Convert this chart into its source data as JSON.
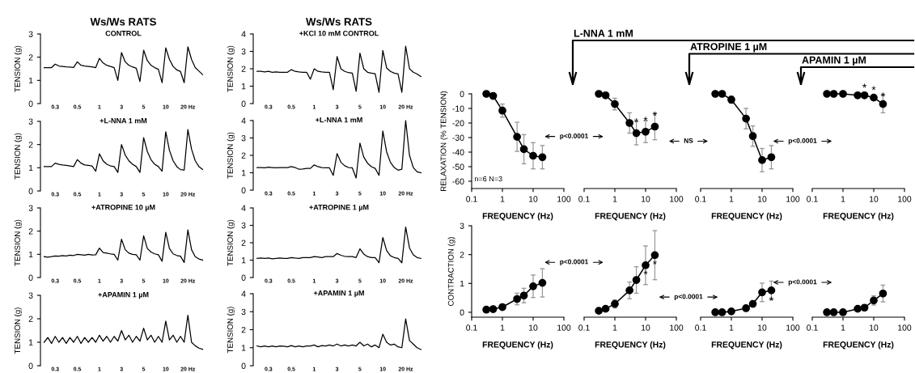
{
  "chart_data": [
    {
      "type": "line",
      "title": "Ws/Ws RATS",
      "subtitle": "CONTROL",
      "ylabel": "TENSION (g)",
      "color": "#000000",
      "ylim": [
        0,
        3
      ],
      "yticks": [
        0,
        1,
        2,
        3
      ],
      "categories": [
        null,
        null,
        null,
        "0.3",
        null,
        null,
        null,
        null,
        null,
        "0.5",
        null,
        null,
        null,
        null,
        null,
        "1",
        null,
        null,
        null,
        null,
        null,
        "3",
        null,
        null,
        null,
        null,
        null,
        "5",
        null,
        null,
        null,
        null,
        null,
        "10",
        null,
        null,
        null,
        null,
        null,
        "20 Hz",
        null,
        null,
        null,
        null
      ],
      "values": [
        1.55,
        1.55,
        1.55,
        1.7,
        1.62,
        1.6,
        1.58,
        1.57,
        1.56,
        1.8,
        1.65,
        1.62,
        1.6,
        1.58,
        1.55,
        1.95,
        1.75,
        1.65,
        1.6,
        1.55,
        1.0,
        2.2,
        1.8,
        1.65,
        1.58,
        1.52,
        0.95,
        2.3,
        1.85,
        1.65,
        1.55,
        1.48,
        0.9,
        2.4,
        1.9,
        1.6,
        1.45,
        1.38,
        0.9,
        2.45,
        1.9,
        1.55,
        1.4,
        1.25
      ]
    },
    {
      "type": "line",
      "subtitle": "+L-NNA 1 mM",
      "ylabel": "TENSION (g)",
      "color": "#000000",
      "ylim": [
        0,
        3
      ],
      "yticks": [
        0,
        1,
        2,
        3
      ],
      "categories": [
        null,
        null,
        null,
        "0.3",
        null,
        null,
        null,
        null,
        null,
        "0.5",
        null,
        null,
        null,
        null,
        null,
        "1",
        null,
        null,
        null,
        null,
        null,
        "3",
        null,
        null,
        null,
        null,
        null,
        "5",
        null,
        null,
        null,
        null,
        null,
        "10",
        null,
        null,
        null,
        null,
        null,
        "20 Hz",
        null,
        null,
        null,
        null
      ],
      "values": [
        1.05,
        1.05,
        1.05,
        1.2,
        1.15,
        1.12,
        1.1,
        1.08,
        1.05,
        1.35,
        1.2,
        1.12,
        1.1,
        1.08,
        0.85,
        1.6,
        1.3,
        1.15,
        1.08,
        1.05,
        0.8,
        2.0,
        1.55,
        1.3,
        1.15,
        1.05,
        0.8,
        2.3,
        1.7,
        1.35,
        1.15,
        1.05,
        0.85,
        2.55,
        1.75,
        1.3,
        1.05,
        0.92,
        0.9,
        2.65,
        1.8,
        1.3,
        1.05,
        0.93
      ]
    },
    {
      "type": "line",
      "subtitle": "+ATROPINE 10 µM",
      "ylabel": "TENSION (g)",
      "color": "#000000",
      "ylim": [
        0,
        3
      ],
      "yticks": [
        0,
        1,
        2,
        3
      ],
      "categories": [
        null,
        null,
        null,
        "0.3",
        null,
        null,
        null,
        null,
        null,
        "0.5",
        null,
        null,
        null,
        null,
        null,
        "1",
        null,
        null,
        null,
        null,
        null,
        "3",
        null,
        null,
        null,
        null,
        null,
        "5",
        null,
        null,
        null,
        null,
        null,
        "10",
        null,
        null,
        null,
        null,
        null,
        "20 Hz",
        null,
        null,
        null,
        null
      ],
      "values": [
        0.9,
        0.88,
        0.9,
        0.93,
        0.92,
        0.95,
        0.93,
        0.96,
        0.95,
        1.0,
        0.98,
        0.96,
        1.0,
        0.97,
        0.98,
        1.27,
        1.08,
        1.05,
        1.02,
        1.0,
        0.75,
        1.65,
        1.2,
        1.05,
        1.0,
        0.98,
        0.75,
        1.8,
        1.25,
        1.1,
        1.02,
        0.98,
        0.7,
        1.95,
        1.25,
        1.02,
        0.95,
        0.92,
        0.65,
        2.05,
        1.2,
        0.9,
        0.8,
        0.75
      ]
    },
    {
      "type": "line",
      "subtitle": "+APAMIN 1 µM",
      "ylabel": "TENSION (g)",
      "color": "#000000",
      "ylim": [
        0,
        3
      ],
      "yticks": [
        0,
        1,
        2,
        3
      ],
      "categories": [
        null,
        null,
        null,
        "0.3",
        null,
        null,
        null,
        null,
        null,
        "0.5",
        null,
        null,
        null,
        null,
        null,
        "1",
        null,
        null,
        null,
        null,
        null,
        "3",
        null,
        null,
        null,
        null,
        null,
        "5",
        null,
        null,
        null,
        null,
        null,
        "10",
        null,
        null,
        null,
        null,
        null,
        "20 Hz",
        null,
        null,
        null,
        null
      ],
      "values": [
        1.0,
        1.2,
        0.95,
        1.25,
        1.0,
        1.2,
        0.95,
        1.2,
        1.0,
        1.25,
        0.95,
        1.2,
        1.0,
        1.2,
        1.0,
        1.3,
        1.05,
        1.25,
        1.0,
        1.25,
        1.05,
        1.5,
        1.1,
        1.3,
        1.0,
        1.25,
        1.05,
        1.6,
        1.1,
        1.3,
        1.0,
        1.25,
        1.0,
        1.9,
        1.1,
        1.3,
        1.0,
        1.25,
        1.0,
        2.15,
        1.0,
        0.85,
        0.75,
        0.7
      ]
    },
    {
      "type": "line",
      "title": "Ws/Ws RATS",
      "subtitle": "+KCl 10 mM CONTROL",
      "ylabel": "TENSION (g)",
      "color": "#000000",
      "ylim": [
        0,
        4
      ],
      "yticks": [
        0,
        1,
        2,
        3,
        4
      ],
      "categories": [
        null,
        null,
        null,
        "0.3",
        null,
        null,
        null,
        null,
        null,
        "0.5",
        null,
        null,
        null,
        null,
        null,
        "1",
        null,
        null,
        null,
        null,
        null,
        "3",
        null,
        null,
        null,
        null,
        null,
        "5",
        null,
        null,
        null,
        null,
        null,
        "10",
        null,
        null,
        null,
        null,
        null,
        "20 Hz",
        null,
        null,
        null,
        null
      ],
      "values": [
        1.85,
        1.85,
        1.82,
        1.85,
        1.8,
        1.82,
        1.8,
        1.8,
        1.8,
        1.95,
        1.85,
        1.82,
        1.8,
        1.8,
        1.4,
        2.0,
        1.85,
        1.82,
        1.8,
        1.8,
        0.8,
        2.7,
        2.0,
        1.85,
        1.78,
        1.75,
        0.7,
        2.9,
        2.0,
        1.8,
        1.75,
        1.72,
        0.65,
        3.05,
        2.05,
        1.85,
        1.75,
        1.7,
        0.65,
        3.3,
        2.0,
        1.8,
        1.7,
        1.55
      ]
    },
    {
      "type": "line",
      "subtitle": "+L-NNA 1 mM",
      "ylabel": "TENSION (g)",
      "color": "#000000",
      "ylim": [
        0,
        4
      ],
      "yticks": [
        0,
        1,
        2,
        3,
        4
      ],
      "categories": [
        null,
        null,
        null,
        "0.3",
        null,
        null,
        null,
        null,
        null,
        "0.5",
        null,
        null,
        null,
        null,
        null,
        "1",
        null,
        null,
        null,
        null,
        null,
        "3",
        null,
        null,
        null,
        null,
        null,
        "5",
        null,
        null,
        null,
        null,
        null,
        "10",
        null,
        null,
        null,
        null,
        null,
        "20 Hz",
        null,
        null,
        null,
        null
      ],
      "values": [
        1.3,
        1.3,
        1.28,
        1.32,
        1.3,
        1.28,
        1.3,
        1.3,
        1.3,
        1.35,
        1.3,
        1.2,
        1.22,
        1.25,
        1.25,
        1.45,
        1.35,
        1.3,
        1.28,
        1.28,
        0.85,
        2.1,
        1.6,
        1.4,
        1.3,
        1.28,
        0.7,
        2.7,
        1.9,
        1.55,
        1.35,
        1.25,
        0.85,
        3.4,
        2.2,
        1.6,
        1.3,
        1.15,
        1.2,
        4.0,
        2.0,
        1.3,
        1.05,
        1.0
      ]
    },
    {
      "type": "line",
      "subtitle": "+ATROPINE 1 µM",
      "ylabel": "TENSION (g)",
      "color": "#000000",
      "ylim": [
        0,
        4
      ],
      "yticks": [
        0,
        1,
        2,
        3,
        4
      ],
      "categories": [
        null,
        null,
        null,
        "0.3",
        null,
        null,
        null,
        null,
        null,
        "0.5",
        null,
        null,
        null,
        null,
        null,
        "1",
        null,
        null,
        null,
        null,
        null,
        "3",
        null,
        null,
        null,
        null,
        null,
        "5",
        null,
        null,
        null,
        null,
        null,
        "10",
        null,
        null,
        null,
        null,
        null,
        "20 Hz",
        null,
        null,
        null,
        null
      ],
      "values": [
        1.1,
        1.12,
        1.1,
        1.12,
        1.08,
        1.1,
        1.12,
        1.1,
        1.1,
        1.15,
        1.12,
        1.1,
        1.15,
        1.15,
        1.15,
        1.2,
        1.18,
        1.15,
        1.2,
        1.2,
        1.2,
        1.38,
        1.28,
        1.22,
        1.2,
        1.2,
        1.15,
        1.65,
        1.35,
        1.2,
        1.15,
        1.15,
        0.85,
        2.3,
        1.55,
        1.25,
        1.15,
        1.1,
        0.85,
        2.9,
        1.7,
        1.3,
        1.15,
        1.1
      ]
    },
    {
      "type": "line",
      "subtitle": "+APAMIN 1 µM",
      "ylabel": "TENSION (g)",
      "color": "#000000",
      "ylim": [
        0,
        4
      ],
      "yticks": [
        0,
        1,
        2,
        3,
        4
      ],
      "categories": [
        null,
        null,
        null,
        "0.3",
        null,
        null,
        null,
        null,
        null,
        "0.5",
        null,
        null,
        null,
        null,
        null,
        "1",
        null,
        null,
        null,
        null,
        null,
        "3",
        null,
        null,
        null,
        null,
        null,
        "5",
        null,
        null,
        null,
        null,
        null,
        "10",
        null,
        null,
        null,
        null,
        null,
        "20 Hz",
        null,
        null,
        null,
        null
      ],
      "values": [
        1.1,
        1.05,
        1.1,
        1.05,
        1.1,
        1.05,
        1.1,
        1.08,
        1.05,
        1.12,
        1.05,
        1.1,
        1.05,
        1.1,
        1.1,
        1.15,
        1.05,
        1.12,
        1.1,
        1.15,
        1.1,
        1.2,
        1.1,
        1.15,
        1.1,
        1.15,
        1.1,
        1.3,
        1.1,
        1.2,
        1.05,
        1.15,
        1.0,
        1.75,
        1.3,
        1.15,
        1.2,
        1.05,
        1.0,
        2.6,
        1.4,
        1.2,
        1.0,
        0.9
      ]
    },
    {
      "type": "line",
      "subtitle": "n=6 N=3",
      "xlabel": "FREQUENCY (Hz)",
      "ylabel": "RELAXATION (% TENSION)",
      "color": "#000000",
      "marker": "circle",
      "log": "x",
      "xlim": [
        0.1,
        100
      ],
      "xticks": [
        0.1,
        1,
        10,
        100
      ],
      "ylim": [
        -65,
        0
      ],
      "yticks": [
        -60,
        -50,
        -40,
        -30,
        -20,
        -10,
        0
      ],
      "x": [
        0.3,
        0.5,
        1,
        3,
        5,
        10,
        20
      ],
      "values": [
        0,
        -1.4,
        -11.5,
        -29.5,
        -38,
        -42.5,
        -43.5
      ],
      "errors": [
        null,
        null,
        4.5,
        10,
        10,
        9,
        8
      ]
    },
    {
      "type": "line",
      "title": "L-NNA 1 mM",
      "xlabel": "FREQUENCY (Hz)",
      "color": "#000000",
      "marker": "circle",
      "log": "x",
      "xlim": [
        0.1,
        100
      ],
      "xticks": [
        0.1,
        1,
        10,
        100
      ],
      "ylim": [
        -65,
        0
      ],
      "yticks": [
        -60,
        -50,
        -40,
        -30,
        -20,
        -10,
        0
      ],
      "tick_labels": "x",
      "x": [
        0.3,
        0.5,
        1,
        3,
        5,
        10,
        20
      ],
      "values": [
        0,
        -1,
        -7,
        -20,
        -27,
        -26,
        -22.5
      ],
      "errors": [
        null,
        null,
        4,
        7,
        8,
        7.5,
        9
      ],
      "annotations": [
        "p<0.0001",
        {
          "text": "*",
          "x": 5,
          "y": -27
        },
        {
          "text": "*",
          "x": 10,
          "y": -26
        },
        {
          "text": "*",
          "x": 20,
          "y": -22.5
        }
      ]
    },
    {
      "type": "line",
      "title": "ATROPINE 1 µM",
      "xlabel": "FREQUENCY (Hz)",
      "color": "#000000",
      "marker": "circle",
      "log": "x",
      "xlim": [
        0.1,
        100
      ],
      "xticks": [
        0.1,
        1,
        10,
        100
      ],
      "ylim": [
        -65,
        0
      ],
      "yticks": [
        -60,
        -50,
        -40,
        -30,
        -20,
        -10,
        0
      ],
      "tick_labels": "x",
      "x": [
        0.3,
        0.5,
        1,
        3,
        5,
        10,
        20
      ],
      "values": [
        0,
        0,
        -4,
        -17,
        -29,
        -45.5,
        -43.5
      ],
      "errors": [
        null,
        null,
        2.5,
        7,
        7,
        8,
        8
      ],
      "annotations": [
        "NS"
      ]
    },
    {
      "type": "line",
      "title": "APAMIN 1 µM",
      "xlabel": "FREQUENCY (Hz)",
      "color": "#000000",
      "marker": "circle",
      "log": "x",
      "xlim": [
        0.1,
        100
      ],
      "xticks": [
        0.1,
        1,
        10,
        100
      ],
      "ylim": [
        -65,
        0
      ],
      "yticks": [
        -60,
        -50,
        -40,
        -30,
        -20,
        -10,
        0
      ],
      "tick_labels": "x",
      "x": [
        0.3,
        0.5,
        1,
        3,
        5,
        10,
        20
      ],
      "values": [
        0,
        0,
        0,
        -1,
        -1,
        -2.6,
        -7
      ],
      "errors": [
        null,
        null,
        null,
        null,
        null,
        null,
        6
      ],
      "annotations": [
        "p<0.0001",
        {
          "text": "*",
          "x": 5,
          "y": -1
        },
        {
          "text": "*",
          "x": 10,
          "y": -2.6
        },
        {
          "text": "*",
          "x": 20,
          "y": -7
        }
      ]
    },
    {
      "type": "line",
      "xlabel": "FREQUENCY (Hz)",
      "ylabel": "CONTRACTION (g)",
      "color": "#000000",
      "marker": "circle",
      "log": "x",
      "xlim": [
        0.1,
        100
      ],
      "xticks": [
        0.1,
        1,
        10,
        100
      ],
      "ylim": [
        -0.17,
        3
      ],
      "yticks": [
        0,
        1,
        2,
        3
      ],
      "x": [
        0.3,
        0.5,
        1,
        3,
        5,
        10,
        20
      ],
      "values": [
        0.09,
        0.11,
        0.18,
        0.46,
        0.58,
        0.9,
        1.02
      ],
      "errors": [
        null,
        null,
        0.05,
        0.2,
        0.25,
        0.39,
        0.49
      ]
    },
    {
      "type": "line",
      "xlabel": "FREQUENCY (Hz)",
      "color": "#000000",
      "marker": "circle",
      "log": "x",
      "xlim": [
        0.1,
        100
      ],
      "xticks": [
        0.1,
        1,
        10,
        100
      ],
      "ylim": [
        -0.17,
        3
      ],
      "yticks": [
        0,
        1,
        2,
        3
      ],
      "tick_labels": "x",
      "x": [
        0.3,
        0.5,
        1,
        3,
        5,
        10,
        20
      ],
      "values": [
        0.05,
        0.12,
        0.29,
        0.76,
        1.12,
        1.63,
        1.98
      ],
      "errors": [
        null,
        null,
        0.14,
        0.29,
        0.46,
        0.67,
        0.85
      ],
      "annotations": [
        "p<0.0001",
        {
          "text": "*",
          "x": 10,
          "y": 1.63
        },
        {
          "text": "*",
          "x": 20,
          "y": 1.98
        }
      ]
    },
    {
      "type": "line",
      "xlabel": "FREQUENCY (Hz)",
      "color": "#000000",
      "marker": "circle",
      "log": "x",
      "xlim": [
        0.1,
        100
      ],
      "xticks": [
        0.1,
        1,
        10,
        100
      ],
      "ylim": [
        -0.17,
        3
      ],
      "yticks": [
        0,
        1,
        2,
        3
      ],
      "tick_labels": "x",
      "x": [
        0.3,
        0.5,
        1,
        3,
        5,
        10,
        20
      ],
      "values": [
        0,
        0,
        0.03,
        0.14,
        0.29,
        0.69,
        0.76
      ],
      "errors": [
        null,
        null,
        null,
        0.05,
        0.1,
        0.32,
        0.32
      ],
      "annotations": [
        "p<0.0001",
        {
          "text": "*",
          "x": 20,
          "y": 0.76
        }
      ]
    },
    {
      "type": "line",
      "xlabel": "FREQUENCY (Hz)",
      "color": "#000000",
      "marker": "circle",
      "log": "x",
      "xlim": [
        0.1,
        100
      ],
      "xticks": [
        0.1,
        1,
        10,
        100
      ],
      "ylim": [
        -0.17,
        3
      ],
      "yticks": [
        0,
        1,
        2,
        3
      ],
      "tick_labels": "x",
      "x": [
        0.3,
        0.5,
        1,
        3,
        5,
        10,
        20
      ],
      "values": [
        0,
        0,
        0,
        0.12,
        0.16,
        0.41,
        0.65
      ],
      "errors": [
        null,
        null,
        null,
        null,
        0.07,
        0.16,
        0.29
      ],
      "annotations": [
        "p<0.0001"
      ]
    }
  ]
}
